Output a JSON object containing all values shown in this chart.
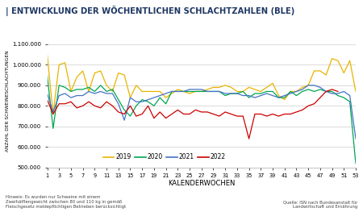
{
  "title": "| ENTWICKLUNG DER WÖCHENTLICHEN SCHLACHTZAHLEN (BLE)",
  "ylabel": "ANZAHL DER SCHWEINESCHLACHTUNGEN",
  "xlabel": "KALENDERWOCHEN",
  "ylim": [
    500000,
    1150000
  ],
  "yticks": [
    500000,
    600000,
    700000,
    800000,
    900000,
    1000000,
    1100000
  ],
  "ytick_labels": [
    "500.000",
    "600.000",
    "700.000",
    "800.000",
    "900.000",
    "1.000.000",
    "1.100.000"
  ],
  "xticks": [
    1,
    3,
    5,
    7,
    9,
    11,
    13,
    15,
    17,
    19,
    21,
    23,
    25,
    27,
    29,
    31,
    33,
    35,
    37,
    39,
    41,
    43,
    45,
    47,
    49,
    51,
    53
  ],
  "footnote_left": "Hinweis: Es wurden nur Schweine mit einem\nZweihälftengewicht zwischen 80 und 110 kg in gemäß\nFleischgesetz meldepflichtigen Betrieben berücksichtigt",
  "footnote_right": "Quelle: ISN nach Bundesanstalt für\nLandwirtschaft und Ernährung",
  "colors": {
    "2019": "#e8b400",
    "2020": "#00a650",
    "2021": "#4472c4",
    "2022": "#cc0000"
  },
  "bg_color": "#ffffff",
  "title_color": "#1f3864",
  "2019": [
    1050000,
    760000,
    1000000,
    1010000,
    870000,
    940000,
    970000,
    870000,
    960000,
    970000,
    900000,
    870000,
    960000,
    950000,
    840000,
    900000,
    870000,
    870000,
    870000,
    870000,
    840000,
    860000,
    880000,
    870000,
    860000,
    870000,
    870000,
    880000,
    890000,
    890000,
    900000,
    890000,
    870000,
    870000,
    890000,
    880000,
    870000,
    890000,
    910000,
    850000,
    830000,
    870000,
    870000,
    890000,
    900000,
    970000,
    970000,
    950000,
    1030000,
    1020000,
    960000,
    1020000,
    870000
  ],
  "2020": [
    950000,
    690000,
    900000,
    890000,
    870000,
    880000,
    880000,
    890000,
    870000,
    900000,
    870000,
    880000,
    830000,
    780000,
    750000,
    800000,
    830000,
    820000,
    800000,
    840000,
    810000,
    870000,
    870000,
    870000,
    870000,
    870000,
    870000,
    870000,
    870000,
    870000,
    850000,
    860000,
    860000,
    870000,
    840000,
    860000,
    860000,
    870000,
    870000,
    840000,
    840000,
    870000,
    850000,
    870000,
    880000,
    870000,
    880000,
    870000,
    870000,
    850000,
    840000,
    820000,
    520000
  ],
  "2021": [
    860000,
    770000,
    850000,
    860000,
    840000,
    850000,
    850000,
    870000,
    860000,
    870000,
    860000,
    860000,
    810000,
    730000,
    840000,
    820000,
    820000,
    830000,
    840000,
    850000,
    860000,
    870000,
    870000,
    870000,
    880000,
    880000,
    880000,
    870000,
    870000,
    870000,
    860000,
    860000,
    860000,
    850000,
    850000,
    840000,
    850000,
    860000,
    850000,
    840000,
    850000,
    860000,
    870000,
    880000,
    900000,
    900000,
    890000,
    870000,
    860000,
    860000,
    870000,
    850000,
    640000
  ],
  "2022": [
    830000,
    760000,
    810000,
    810000,
    820000,
    790000,
    800000,
    820000,
    800000,
    790000,
    820000,
    800000,
    770000,
    760000,
    800000,
    750000,
    760000,
    800000,
    740000,
    770000,
    740000,
    760000,
    780000,
    760000,
    760000,
    780000,
    770000,
    770000,
    760000,
    750000,
    770000,
    760000,
    750000,
    750000,
    640000,
    760000,
    760000,
    750000,
    760000,
    750000,
    760000,
    760000,
    770000,
    780000,
    800000,
    810000,
    840000,
    870000,
    880000,
    870000,
    null,
    null,
    null
  ]
}
